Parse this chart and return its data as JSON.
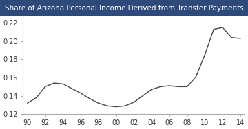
{
  "x": [
    90,
    91,
    92,
    93,
    94,
    95,
    96,
    97,
    98,
    99,
    100,
    101,
    102,
    103,
    104,
    105,
    106,
    107,
    108,
    109,
    110,
    111,
    112,
    113,
    114
  ],
  "y": [
    0.132,
    0.138,
    0.15,
    0.154,
    0.153,
    0.148,
    0.143,
    0.137,
    0.132,
    0.129,
    0.128,
    0.129,
    0.133,
    0.14,
    0.147,
    0.15,
    0.151,
    0.15,
    0.15,
    0.161,
    0.185,
    0.213,
    0.215,
    0.204,
    0.203
  ],
  "x_ticks": [
    90,
    92,
    94,
    96,
    98,
    100,
    102,
    104,
    106,
    108,
    110,
    112,
    114
  ],
  "x_tick_labels": [
    "90",
    "92",
    "94",
    "96",
    "98",
    "00",
    "02",
    "04",
    "06",
    "08",
    "10",
    "12",
    "14"
  ],
  "y_ticks": [
    0.12,
    0.14,
    0.16,
    0.18,
    0.2,
    0.22
  ],
  "ylim": [
    0.12,
    0.225
  ],
  "xlim": [
    89.5,
    114.5
  ],
  "title": "Share of Arizona Personal Income Derived from Transfer Payments",
  "title_fontsize": 7.5,
  "title_bg_color": "#2E4A7A",
  "title_text_color": "#FFFFFF",
  "line_color": "#444444",
  "line_width": 1.0,
  "bg_color": "#FFFFFF",
  "plot_bg_color": "#FFFFFF",
  "tick_fontsize": 7
}
